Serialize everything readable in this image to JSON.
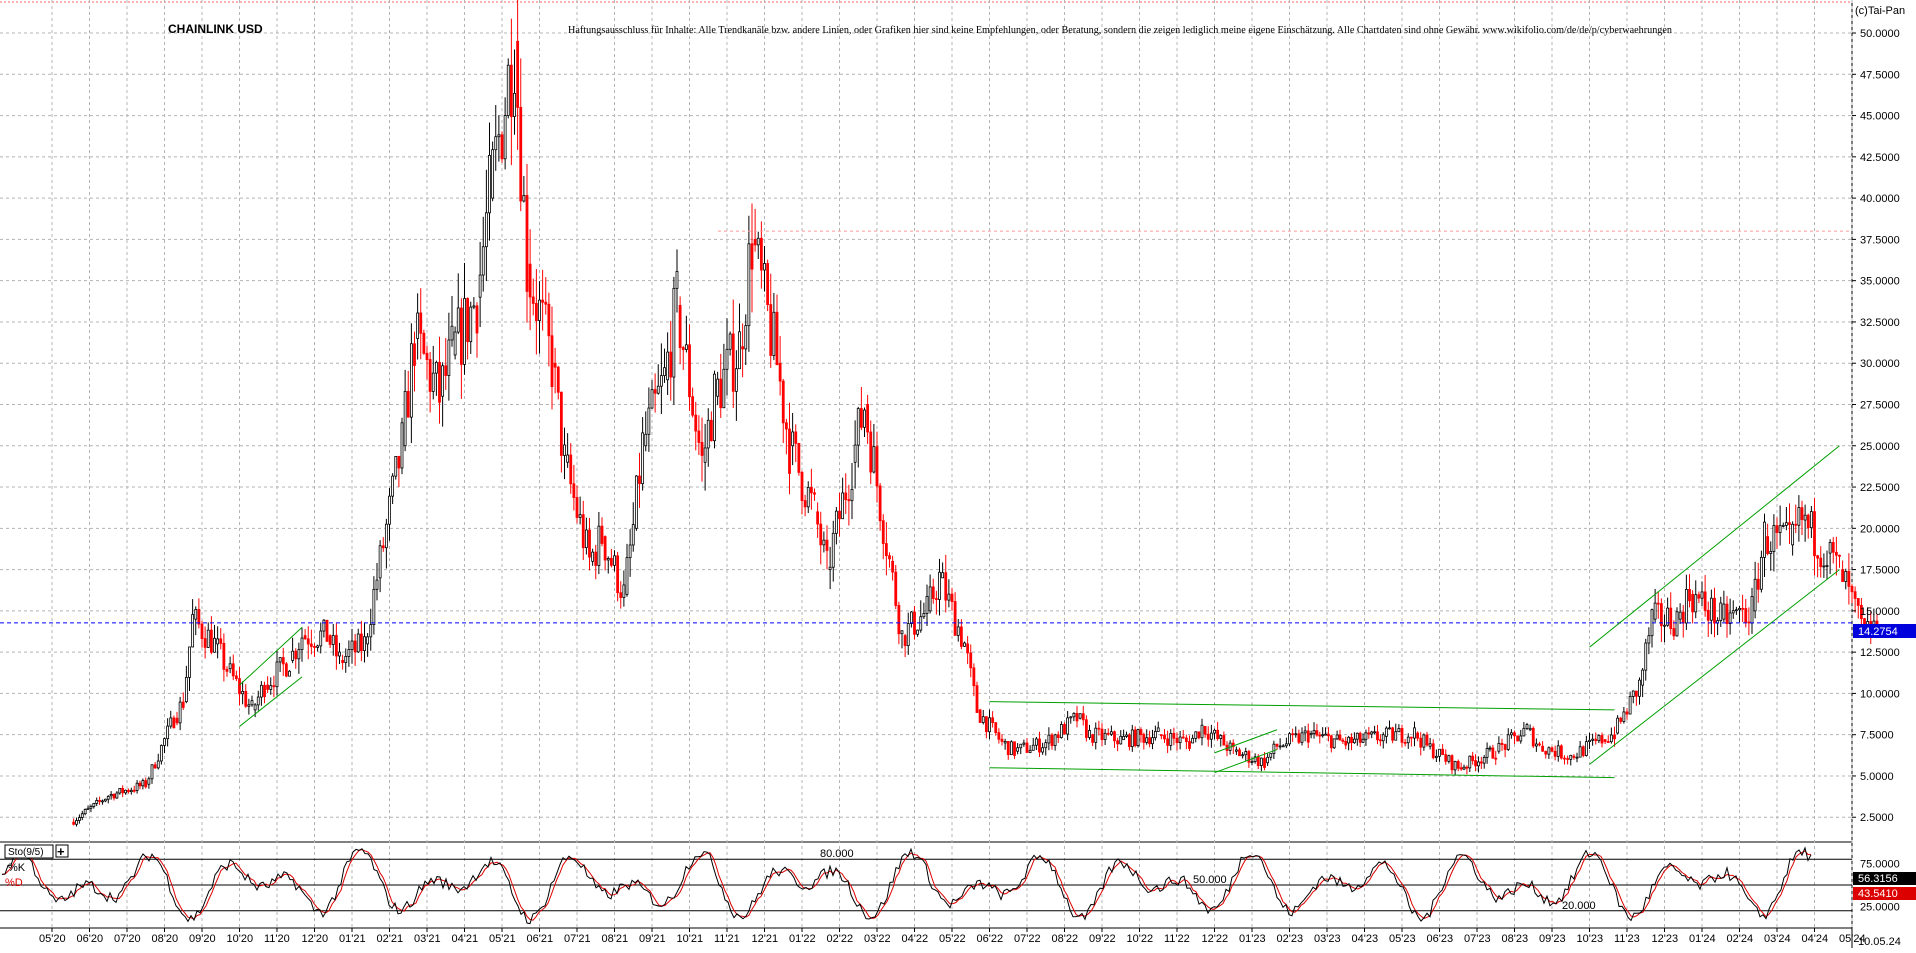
{
  "chart_data": {
    "type": "candlestick",
    "title": "CHAINLINK USD",
    "disclaimer": "Haftungsausschluss für Inhalte: Alle Trendkanäle bzw. andere Linien, oder Grafiken hier sind keine Empfehlungen, oder Beratung, sondern die zeigen lediglich meine eigene Einschätzung. Alle Chartdaten sind ohne Gewähr.  www.wikifolio.com/de/de/p/cyberwaehrungen",
    "copyright": "(c)Tai-Pan",
    "current_price": 14.2754,
    "current_price_label": "14.2754",
    "date_label": "10.05.24",
    "resistance_level": 38.0,
    "ylim": [
      1.0,
      52.0
    ],
    "y_ticks": [
      2.5,
      5.0,
      7.5,
      10.0,
      12.5,
      15.0,
      17.5,
      20.0,
      22.5,
      25.0,
      27.5,
      30.0,
      32.5,
      35.0,
      37.5,
      40.0,
      42.5,
      45.0,
      47.5,
      50.0
    ],
    "y_tick_labels": [
      "2.5000",
      "5.0000",
      "7.5000",
      "10.0000",
      "12.5000",
      "15.0000",
      "17.5000",
      "20.0000",
      "22.5000",
      "25.0000",
      "27.5000",
      "30.0000",
      "32.5000",
      "35.0000",
      "37.5000",
      "40.0000",
      "42.5000",
      "45.0000",
      "47.5000",
      "50.0000"
    ],
    "x_tick_labels": [
      "05'20",
      "06'20",
      "07'20",
      "08'20",
      "09'20",
      "10'20",
      "11'20",
      "12'20",
      "01'21",
      "02'21",
      "03'21",
      "04'21",
      "05'21",
      "06'21",
      "07'21",
      "08'21",
      "09'21",
      "10'21",
      "11'21",
      "12'21",
      "01'22",
      "02'22",
      "03'22",
      "04'22",
      "05'22",
      "06'22",
      "07'22",
      "08'22",
      "09'22",
      "10'22",
      "11'22",
      "12'22",
      "01'23",
      "02'23",
      "03'23",
      "04'23",
      "05'23",
      "06'23",
      "07'23",
      "08'23",
      "09'23",
      "10'23",
      "11'23",
      "12'23",
      "01'24",
      "02'24",
      "03'24",
      "04'24",
      "05'24"
    ],
    "price_path": [
      [
        "05'20",
        2.2
      ],
      [
        "06'20",
        3.8
      ],
      [
        "07'20",
        4.5
      ],
      [
        "08'20",
        8.5
      ],
      [
        "08'20",
        9.5
      ],
      [
        "08'20",
        14.5
      ],
      [
        "09'20",
        13.0
      ],
      [
        "09'20",
        11.5
      ],
      [
        "10'20",
        9.0
      ],
      [
        "10'20",
        10.5
      ],
      [
        "11'20",
        12.0
      ],
      [
        "11'20",
        13.5
      ],
      [
        "12'20",
        13.5
      ],
      [
        "12'20",
        12.0
      ],
      [
        "01'21",
        13.0
      ],
      [
        "01'21",
        17.0
      ],
      [
        "02'21",
        25.0
      ],
      [
        "02'21",
        31.5
      ],
      [
        "03'21",
        28.0
      ],
      [
        "03'21",
        30.5
      ],
      [
        "04'21",
        34.0
      ],
      [
        "04'21",
        40.0
      ],
      [
        "05'21",
        49.5
      ],
      [
        "05'21",
        36.0
      ],
      [
        "06'21",
        30.0
      ],
      [
        "06'21",
        24.0
      ],
      [
        "07'21",
        18.0
      ],
      [
        "07'21",
        19.5
      ],
      [
        "08'21",
        16.0
      ],
      [
        "08'21",
        20.0
      ],
      [
        "08'21",
        25.0
      ],
      [
        "09'21",
        29.0
      ],
      [
        "09'21",
        33.5
      ],
      [
        "10'21",
        24.0
      ],
      [
        "10'21",
        28.0
      ],
      [
        "11'21",
        31.0
      ],
      [
        "11'21",
        37.5
      ],
      [
        "12'21",
        30.0
      ],
      [
        "12'21",
        25.0
      ],
      [
        "01'22",
        21.0
      ],
      [
        "01'22",
        17.5
      ],
      [
        "02'22",
        24.0
      ],
      [
        "02'22",
        27.5
      ],
      [
        "03'22",
        18.0
      ],
      [
        "03'22",
        13.5
      ],
      [
        "04'22",
        15.0
      ],
      [
        "04'22",
        17.0
      ],
      [
        "05'22",
        13.0
      ],
      [
        "05'22",
        9.0
      ],
      [
        "06'22",
        7.0
      ],
      [
        "06'22",
        6.5
      ],
      [
        "07'22",
        7.0
      ],
      [
        "08'22",
        8.5
      ],
      [
        "08'22",
        7.5
      ],
      [
        "09'22",
        7.2
      ],
      [
        "10'22",
        7.5
      ],
      [
        "11'22",
        7.0
      ],
      [
        "11'22",
        8.0
      ],
      [
        "12'22",
        6.5
      ],
      [
        "01'23",
        5.8
      ],
      [
        "01'23",
        6.8
      ],
      [
        "02'23",
        7.5
      ],
      [
        "03'23",
        7.0
      ],
      [
        "04'23",
        7.4
      ],
      [
        "05'23",
        7.6
      ],
      [
        "05'23",
        6.8
      ],
      [
        "06'23",
        5.5
      ],
      [
        "07'23",
        6.5
      ],
      [
        "08'23",
        7.8
      ],
      [
        "08'23",
        6.8
      ],
      [
        "09'23",
        6.2
      ],
      [
        "10'23",
        7.2
      ],
      [
        "10'23",
        7.6
      ],
      [
        "11'23",
        10.5
      ],
      [
        "11'23",
        14.5
      ],
      [
        "12'23",
        14.5
      ],
      [
        "12'23",
        16.0
      ],
      [
        "01'24",
        14.5
      ],
      [
        "02'24",
        15.0
      ],
      [
        "02'24",
        19.5
      ],
      [
        "03'24",
        19.0
      ],
      [
        "03'24",
        20.5
      ],
      [
        "04'24",
        18.5
      ],
      [
        "04'24",
        17.5
      ],
      [
        "05'24",
        13.5
      ],
      [
        "05'24",
        14.27
      ]
    ],
    "trend_lines": [
      {
        "name": "channel-2020-upper",
        "from": [
          "10'20",
          10.5
        ],
        "to": [
          "11'20",
          14.0
        ]
      },
      {
        "name": "channel-2020-lower",
        "from": [
          "10'20",
          8.0
        ],
        "to": [
          "11'20",
          11.0
        ]
      },
      {
        "name": "range-upper",
        "from": [
          "06'22",
          9.5
        ],
        "to": [
          "10'23",
          9.0
        ]
      },
      {
        "name": "range-lower",
        "from": [
          "06'22",
          5.5
        ],
        "to": [
          "10'23",
          4.9
        ]
      },
      {
        "name": "channel-2023-upper",
        "from": [
          "10'23",
          12.8
        ],
        "to": [
          "04'24",
          25.0
        ]
      },
      {
        "name": "channel-2023-lower",
        "from": [
          "10'23",
          5.7
        ],
        "to": [
          "04'24",
          17.5
        ]
      },
      {
        "name": "minor-2022-upper",
        "from": [
          "12'22",
          6.4
        ],
        "to": [
          "01'23",
          7.8
        ]
      },
      {
        "name": "minor-2022-lower",
        "from": [
          "12'22",
          5.2
        ],
        "to": [
          "01'23",
          6.6
        ]
      }
    ]
  },
  "stochastic": {
    "indicator_label": "Sto(9/5)",
    "k_label": "%K",
    "d_label": "%D",
    "level_labels": [
      "80.000",
      "50.000",
      "20.000"
    ],
    "level_values": [
      80,
      50,
      20
    ],
    "ylim": [
      0,
      100
    ],
    "y_ticks": [
      25,
      75
    ],
    "y_tick_labels": [
      "25.0000",
      "75.0000"
    ],
    "k_value": 56.3156,
    "k_value_label": "56.3156",
    "d_value": 43.541,
    "d_value_label": "43.5410"
  },
  "colors": {
    "up": "#000000",
    "down": "#ff0000",
    "trend_line": "#00a000",
    "price_line": "#0000ff",
    "resistance": "#ff9999",
    "grid": "#b4b4b4",
    "k_line": "#000000",
    "d_line": "#dd0000"
  }
}
